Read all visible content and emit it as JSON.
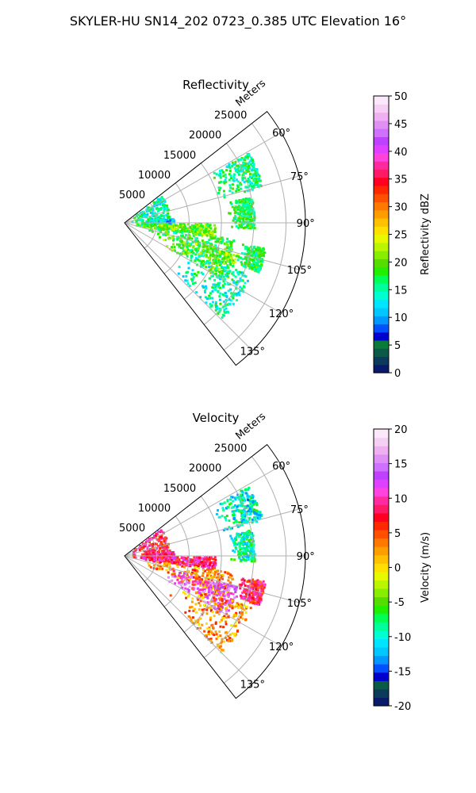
{
  "figure_title": "SKYLER-HU  SN14_202  0723_0.385 UTC Elevation 16°",
  "range_axis_label": "Meters",
  "range_ticks": [
    "5000",
    "10000",
    "15000",
    "20000",
    "25000"
  ],
  "azimuth_ticks": [
    "60°",
    "75°",
    "90°",
    "105°",
    "120°",
    "135°"
  ],
  "chart_data": [
    {
      "type": "heatmap",
      "projection": "polar-sector",
      "title": "Reflectivity",
      "azimuth_range_deg": [
        52,
        142
      ],
      "range_max_m": 28000,
      "range_ticks_m": [
        5000,
        10000,
        15000,
        20000,
        25000
      ],
      "azimuth_ticks_deg": [
        60,
        75,
        90,
        105,
        120,
        135
      ],
      "grid": true,
      "colorbar": {
        "label": "Reflectivity dBZ",
        "min": 0,
        "max": 50,
        "ticks": [
          "0",
          "5",
          "10",
          "15",
          "20",
          "25",
          "30",
          "35",
          "40",
          "45",
          "50"
        ],
        "colors": [
          "#0a1a6a",
          "#0a3b5a",
          "#0b5a45",
          "#0a7a3a",
          "#0000cc",
          "#0050ff",
          "#0098ff",
          "#00c8ff",
          "#00e5ff",
          "#00ffd0",
          "#00ff9a",
          "#00ff55",
          "#22ee00",
          "#55dd00",
          "#88ee00",
          "#bbf500",
          "#e8f800",
          "#ffe000",
          "#ffc000",
          "#ff9c00",
          "#ff7800",
          "#ff5000",
          "#ff2800",
          "#ff0020",
          "#ff1a66",
          "#ff2aa0",
          "#ff44dd",
          "#e040ff",
          "#c040ff",
          "#d070ff",
          "#e090f5",
          "#eeb0f0",
          "#f6d0f4",
          "#fbe8fb"
        ]
      },
      "echo_regions": [
        {
          "az": [
            52,
            99
          ],
          "r": [
            1000,
            7000
          ],
          "level": 15
        },
        {
          "az": [
            84,
            90
          ],
          "r": [
            3000,
            7500
          ],
          "level": 12
        },
        {
          "az": [
            90,
            98
          ],
          "r": [
            500,
            14000
          ],
          "level": 20
        },
        {
          "az": [
            98,
            112
          ],
          "r": [
            3000,
            17000
          ],
          "level": 18
        },
        {
          "az": [
            105,
            120
          ],
          "r": [
            6000,
            18000
          ],
          "level": 20
        },
        {
          "az": [
            112,
            135
          ],
          "r": [
            9000,
            21000
          ],
          "level": 15
        },
        {
          "az": [
            60,
            75
          ],
          "r": [
            15000,
            22000
          ],
          "level": 16
        },
        {
          "az": [
            78,
            92
          ],
          "r": [
            16000,
            20000
          ],
          "level": 17
        },
        {
          "az": [
            100,
            110
          ],
          "r": [
            18000,
            22000
          ],
          "level": 17
        }
      ]
    },
    {
      "type": "heatmap",
      "projection": "polar-sector",
      "title": "Velocity",
      "azimuth_range_deg": [
        52,
        142
      ],
      "range_max_m": 28000,
      "range_ticks_m": [
        5000,
        10000,
        15000,
        20000,
        25000
      ],
      "azimuth_ticks_deg": [
        60,
        75,
        90,
        105,
        120,
        135
      ],
      "grid": true,
      "colorbar": {
        "label": "Velocity (m/s)",
        "min": -20,
        "max": 20,
        "ticks": [
          "-20",
          "-15",
          "-10",
          "-5",
          "0",
          "5",
          "10",
          "15",
          "20"
        ],
        "colors": [
          "#0a1a6a",
          "#0a3b5a",
          "#0b5a45",
          "#0000cc",
          "#0050ff",
          "#0098ff",
          "#00c8ff",
          "#00e5ff",
          "#00ffd0",
          "#00ff9a",
          "#00ff55",
          "#22ee00",
          "#55dd00",
          "#88ee00",
          "#bbf500",
          "#e8f800",
          "#ffe000",
          "#ffc000",
          "#ff9c00",
          "#ff7800",
          "#ff5000",
          "#ff2800",
          "#ff0020",
          "#ff1a66",
          "#ff2aa0",
          "#ff44dd",
          "#e040ff",
          "#c040ff",
          "#d070ff",
          "#e090f5",
          "#eeb0f0",
          "#f6d0f4",
          "#fbe8fb"
        ]
      },
      "echo_regions": [
        {
          "az": [
            52,
            99
          ],
          "r": [
            1000,
            7000
          ],
          "level": 8
        },
        {
          "az": [
            84,
            90
          ],
          "r": [
            3000,
            7500
          ],
          "level": 10
        },
        {
          "az": [
            90,
            98
          ],
          "r": [
            500,
            14000
          ],
          "level": 9
        },
        {
          "az": [
            98,
            112
          ],
          "r": [
            3000,
            17000
          ],
          "level": 3
        },
        {
          "az": [
            105,
            120
          ],
          "r": [
            6000,
            18000
          ],
          "level": 13
        },
        {
          "az": [
            112,
            135
          ],
          "r": [
            9000,
            21000
          ],
          "level": 3
        },
        {
          "az": [
            60,
            75
          ],
          "r": [
            15000,
            22000
          ],
          "level": -10
        },
        {
          "az": [
            78,
            92
          ],
          "r": [
            16000,
            20000
          ],
          "level": -9
        },
        {
          "az": [
            100,
            110
          ],
          "r": [
            18000,
            22000
          ],
          "level": 8
        }
      ]
    }
  ]
}
